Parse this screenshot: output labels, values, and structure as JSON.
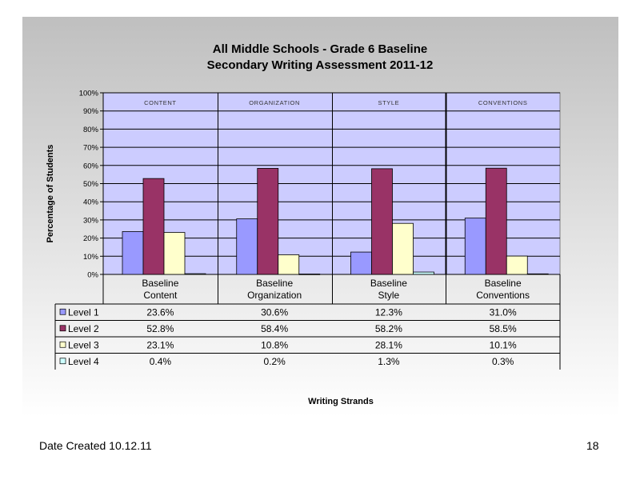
{
  "colors": {
    "plot_bg": "#ccccff",
    "level1": "#9999ff",
    "level2": "#993366",
    "level3": "#ffffcc",
    "level4": "#ccffff"
  },
  "chart_data": {
    "type": "bar",
    "title_line1": "All Middle Schools - Grade 6 Baseline",
    "title_line2": "Secondary Writing Assessment   2011-12",
    "xlabel": "Writing Strands",
    "ylabel": "Percentage of Students",
    "ylim": [
      0,
      100
    ],
    "yticks": [
      "0%",
      "10%",
      "20%",
      "30%",
      "40%",
      "50%",
      "60%",
      "70%",
      "80%",
      "90%",
      "100%"
    ],
    "grid": true,
    "legend": "table-left",
    "categories": [
      {
        "line1": "Baseline",
        "line2": "Content"
      },
      {
        "line1": "Baseline",
        "line2": "Organization"
      },
      {
        "line1": "Baseline",
        "line2": "Style"
      },
      {
        "line1": "Baseline",
        "line2": "Conventions"
      }
    ],
    "section_labels": [
      "CONTENT",
      "ORGANIZATION",
      "STYLE",
      "CONVENTIONS"
    ],
    "series": [
      {
        "name": "Level 1",
        "values": [
          23.6,
          30.6,
          12.3,
          31.0
        ],
        "labels": [
          "23.6%",
          "30.6%",
          "12.3%",
          "31.0%"
        ]
      },
      {
        "name": "Level 2",
        "values": [
          52.8,
          58.4,
          58.2,
          58.5
        ],
        "labels": [
          "52.8%",
          "58.4%",
          "58.2%",
          "58.5%"
        ]
      },
      {
        "name": "Level 3",
        "values": [
          23.1,
          10.8,
          28.1,
          10.1
        ],
        "labels": [
          "23.1%",
          "10.8%",
          "28.1%",
          "10.1%"
        ]
      },
      {
        "name": "Level 4",
        "values": [
          0.4,
          0.2,
          1.3,
          0.3
        ],
        "labels": [
          "0.4%",
          "0.2%",
          "1.3%",
          "0.3%"
        ]
      }
    ]
  },
  "footer": {
    "date_created": "Date Created  10.12.11",
    "page_number": "18"
  }
}
